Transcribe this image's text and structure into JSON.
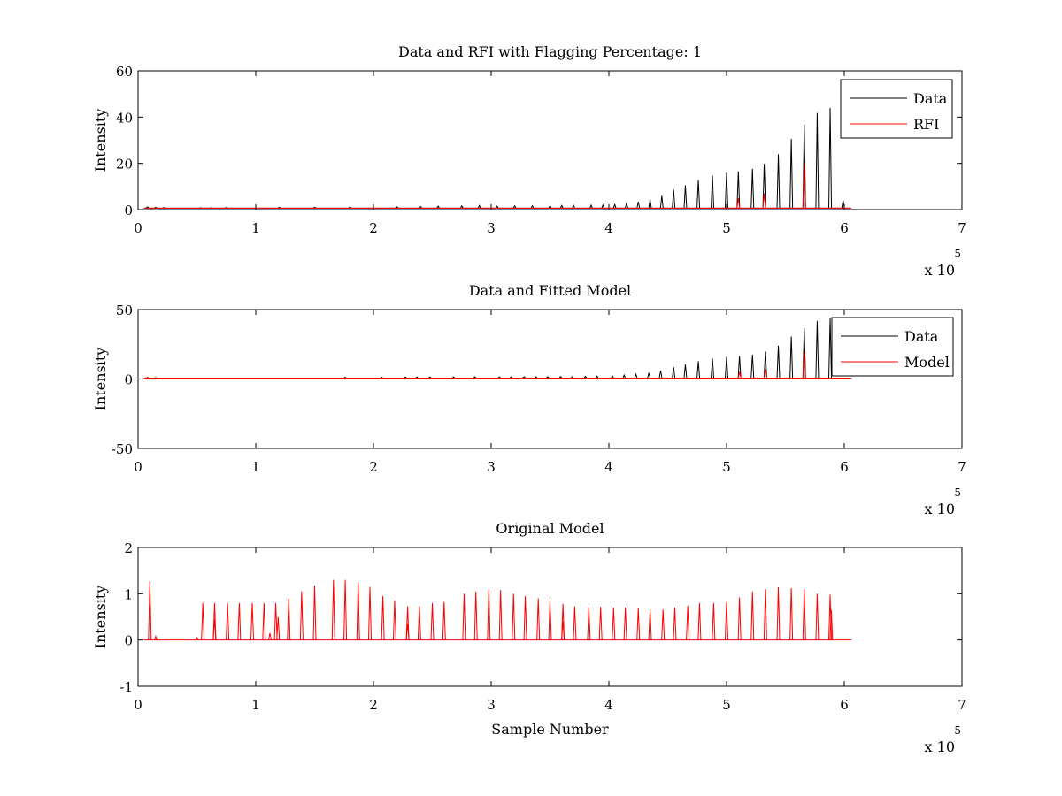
{
  "chart_data": [
    {
      "type": "line",
      "title": "Data and RFI with Flagging Percentage: 1",
      "xlabel": "",
      "ylabel": "Intensity",
      "xlim": [
        0,
        7
      ],
      "ylim": [
        0,
        60
      ],
      "xticks": [
        "0",
        "1",
        "2",
        "3",
        "4",
        "5",
        "6",
        "7"
      ],
      "yticks": [
        "0",
        "20",
        "40",
        "60"
      ],
      "x_multiplier": "x 10",
      "x_exponent": "5",
      "legend": {
        "position": "top-right",
        "entries": [
          "Data",
          "RFI"
        ]
      },
      "series": [
        {
          "name": "Data",
          "color": "#000000",
          "baseline": 0.6,
          "x_range": [
            0.05,
            6.06
          ],
          "peaks": [
            {
              "x": 0.08,
              "y": 1.2
            },
            {
              "x": 0.15,
              "y": 1.0
            },
            {
              "x": 0.22,
              "y": 0.9
            },
            {
              "x": 0.53,
              "y": 0.8
            },
            {
              "x": 0.62,
              "y": 0.8
            },
            {
              "x": 0.75,
              "y": 0.9
            },
            {
              "x": 1.2,
              "y": 1.0
            },
            {
              "x": 1.5,
              "y": 1.0
            },
            {
              "x": 1.8,
              "y": 1.1
            },
            {
              "x": 2.2,
              "y": 1.2
            },
            {
              "x": 2.4,
              "y": 1.3
            },
            {
              "x": 2.55,
              "y": 1.5
            },
            {
              "x": 2.75,
              "y": 1.6
            },
            {
              "x": 2.9,
              "y": 1.8
            },
            {
              "x": 3.05,
              "y": 1.5
            },
            {
              "x": 3.2,
              "y": 1.6
            },
            {
              "x": 3.35,
              "y": 1.7
            },
            {
              "x": 3.5,
              "y": 1.7
            },
            {
              "x": 3.6,
              "y": 1.8
            },
            {
              "x": 3.7,
              "y": 1.8
            },
            {
              "x": 3.85,
              "y": 1.9
            },
            {
              "x": 3.95,
              "y": 2.0
            },
            {
              "x": 4.05,
              "y": 2.2
            },
            {
              "x": 4.15,
              "y": 2.8
            },
            {
              "x": 4.25,
              "y": 3.4
            },
            {
              "x": 4.35,
              "y": 4.4
            },
            {
              "x": 4.45,
              "y": 6.0
            },
            {
              "x": 4.55,
              "y": 8.6
            },
            {
              "x": 4.65,
              "y": 10.5
            },
            {
              "x": 4.76,
              "y": 12.8
            },
            {
              "x": 4.88,
              "y": 14.8
            },
            {
              "x": 5.0,
              "y": 16.0
            },
            {
              "x": 5.1,
              "y": 16.5
            },
            {
              "x": 5.22,
              "y": 17.6
            },
            {
              "x": 5.32,
              "y": 19.8
            },
            {
              "x": 5.44,
              "y": 24.0
            },
            {
              "x": 5.55,
              "y": 30.6
            },
            {
              "x": 5.66,
              "y": 36.8
            },
            {
              "x": 5.77,
              "y": 41.8
            },
            {
              "x": 5.88,
              "y": 44.0
            },
            {
              "x": 5.99,
              "y": 4.0
            }
          ]
        },
        {
          "name": "RFI",
          "color": "#ff0000",
          "baseline": 0.6,
          "x_range": [
            0.05,
            6.06
          ],
          "peaks": [
            {
              "x": 5.1,
              "y": 5.0
            },
            {
              "x": 5.32,
              "y": 7.0
            },
            {
              "x": 5.66,
              "y": 20.0
            }
          ]
        }
      ]
    },
    {
      "type": "line",
      "title": "Data and Fitted Model",
      "xlabel": "",
      "ylabel": "Intensity",
      "xlim": [
        0,
        7
      ],
      "ylim": [
        -50,
        50
      ],
      "xticks": [
        "0",
        "1",
        "2",
        "3",
        "4",
        "5",
        "6",
        "7"
      ],
      "yticks": [
        "-50",
        "0",
        "50"
      ],
      "x_multiplier": "x 10",
      "x_exponent": "5",
      "legend": {
        "position": "top-right",
        "entries": [
          "Data",
          "Model"
        ]
      },
      "series": [
        {
          "name": "Data",
          "color": "#000000",
          "baseline": 0.6,
          "x_range": [
            0.05,
            6.06
          ],
          "peaks": [
            {
              "x": 0.08,
              "y": 1.2
            },
            {
              "x": 0.15,
              "y": 1.0
            },
            {
              "x": 1.76,
              "y": 1.2
            },
            {
              "x": 2.07,
              "y": 1.2
            },
            {
              "x": 2.27,
              "y": 1.4
            },
            {
              "x": 2.37,
              "y": 1.4
            },
            {
              "x": 2.48,
              "y": 1.5
            },
            {
              "x": 2.68,
              "y": 1.5
            },
            {
              "x": 2.86,
              "y": 1.6
            },
            {
              "x": 3.07,
              "y": 1.5
            },
            {
              "x": 3.17,
              "y": 1.6
            },
            {
              "x": 3.28,
              "y": 1.7
            },
            {
              "x": 3.38,
              "y": 1.7
            },
            {
              "x": 3.48,
              "y": 1.7
            },
            {
              "x": 3.59,
              "y": 1.8
            },
            {
              "x": 3.69,
              "y": 1.8
            },
            {
              "x": 3.8,
              "y": 1.9
            },
            {
              "x": 3.9,
              "y": 2.0
            },
            {
              "x": 4.03,
              "y": 2.2
            },
            {
              "x": 4.13,
              "y": 2.8
            },
            {
              "x": 4.23,
              "y": 3.4
            },
            {
              "x": 4.34,
              "y": 4.4
            },
            {
              "x": 4.44,
              "y": 6.0
            },
            {
              "x": 4.55,
              "y": 8.6
            },
            {
              "x": 4.65,
              "y": 10.5
            },
            {
              "x": 4.76,
              "y": 12.8
            },
            {
              "x": 4.88,
              "y": 14.8
            },
            {
              "x": 5.0,
              "y": 16.0
            },
            {
              "x": 5.11,
              "y": 16.5
            },
            {
              "x": 5.22,
              "y": 17.6
            },
            {
              "x": 5.33,
              "y": 19.8
            },
            {
              "x": 5.44,
              "y": 24.0
            },
            {
              "x": 5.55,
              "y": 30.6
            },
            {
              "x": 5.66,
              "y": 36.8
            },
            {
              "x": 5.77,
              "y": 41.8
            },
            {
              "x": 5.88,
              "y": 44.0
            }
          ]
        },
        {
          "name": "Model",
          "color": "#ff0000",
          "baseline": 0.6,
          "x_range": [
            0.05,
            6.06
          ],
          "peaks": [
            {
              "x": 0.08,
              "y": 1.2
            },
            {
              "x": 5.11,
              "y": 5.0
            },
            {
              "x": 5.33,
              "y": 7.0
            },
            {
              "x": 5.66,
              "y": 20.0
            }
          ]
        }
      ]
    },
    {
      "type": "line",
      "title": "Original Model",
      "xlabel": "Sample Number",
      "ylabel": "Intensity",
      "xlim": [
        0,
        7
      ],
      "ylim": [
        -1,
        2
      ],
      "xticks": [
        "0",
        "1",
        "2",
        "3",
        "4",
        "5",
        "6",
        "7"
      ],
      "yticks": [
        "-1",
        "0",
        "1",
        "2"
      ],
      "x_multiplier": "x 10",
      "x_exponent": "5",
      "legend": null,
      "series": [
        {
          "color": "#ff0000",
          "baseline": 0.0,
          "x_range": [
            0.05,
            6.06
          ],
          "peaks": [
            {
              "x": 0.1,
              "y": 1.27
            },
            {
              "x": 0.15,
              "y": 0.08
            },
            {
              "x": 0.5,
              "y": 0.05
            },
            {
              "x": 0.55,
              "y": 0.8
            },
            {
              "x": 0.65,
              "y": 0.8
            },
            {
              "x": 0.65,
              "y": 0.45
            },
            {
              "x": 0.76,
              "y": 0.8
            },
            {
              "x": 0.86,
              "y": 0.8
            },
            {
              "x": 0.97,
              "y": 0.8
            },
            {
              "x": 1.07,
              "y": 0.8
            },
            {
              "x": 1.12,
              "y": 0.15
            },
            {
              "x": 1.17,
              "y": 0.8
            },
            {
              "x": 1.19,
              "y": 0.5
            },
            {
              "x": 1.28,
              "y": 0.9
            },
            {
              "x": 1.39,
              "y": 1.05
            },
            {
              "x": 1.5,
              "y": 1.18
            },
            {
              "x": 1.66,
              "y": 1.3
            },
            {
              "x": 1.76,
              "y": 1.3
            },
            {
              "x": 1.87,
              "y": 1.25
            },
            {
              "x": 1.97,
              "y": 1.15
            },
            {
              "x": 2.08,
              "y": 0.95
            },
            {
              "x": 2.18,
              "y": 0.85
            },
            {
              "x": 2.29,
              "y": 0.73
            },
            {
              "x": 2.29,
              "y": 0.35
            },
            {
              "x": 2.39,
              "y": 0.73
            },
            {
              "x": 2.5,
              "y": 0.8
            },
            {
              "x": 2.6,
              "y": 0.82
            },
            {
              "x": 2.77,
              "y": 1.0
            },
            {
              "x": 2.87,
              "y": 1.05
            },
            {
              "x": 2.98,
              "y": 1.1
            },
            {
              "x": 3.08,
              "y": 1.08
            },
            {
              "x": 3.19,
              "y": 1.0
            },
            {
              "x": 3.29,
              "y": 0.95
            },
            {
              "x": 3.4,
              "y": 0.9
            },
            {
              "x": 3.5,
              "y": 0.85
            },
            {
              "x": 3.61,
              "y": 0.78
            },
            {
              "x": 3.61,
              "y": 0.4
            },
            {
              "x": 3.71,
              "y": 0.73
            },
            {
              "x": 3.83,
              "y": 0.72
            },
            {
              "x": 3.93,
              "y": 0.72
            },
            {
              "x": 4.04,
              "y": 0.7
            },
            {
              "x": 4.14,
              "y": 0.7
            },
            {
              "x": 4.25,
              "y": 0.68
            },
            {
              "x": 4.35,
              "y": 0.66
            },
            {
              "x": 4.46,
              "y": 0.66
            },
            {
              "x": 4.56,
              "y": 0.7
            },
            {
              "x": 4.67,
              "y": 0.74
            },
            {
              "x": 4.77,
              "y": 0.8
            },
            {
              "x": 4.89,
              "y": 0.8
            },
            {
              "x": 5.0,
              "y": 0.82
            },
            {
              "x": 5.11,
              "y": 0.92
            },
            {
              "x": 5.22,
              "y": 1.05
            },
            {
              "x": 5.33,
              "y": 1.1
            },
            {
              "x": 5.44,
              "y": 1.14
            },
            {
              "x": 5.55,
              "y": 1.12
            },
            {
              "x": 5.66,
              "y": 1.1
            },
            {
              "x": 5.77,
              "y": 1.0
            },
            {
              "x": 5.88,
              "y": 0.98
            },
            {
              "x": 5.89,
              "y": 0.65
            }
          ]
        }
      ]
    }
  ]
}
